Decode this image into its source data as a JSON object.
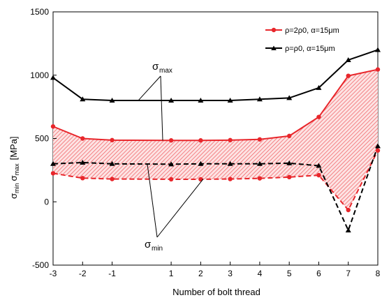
{
  "chart_data": {
    "type": "line",
    "title": "",
    "xlabel": "Number of bolt thread",
    "ylabel": "σmin σmax [MPa]",
    "ylabel_parts": {
      "sigma1": "σ",
      "sub1": "min",
      "sigma2": "σ",
      "sub2": "max",
      "unit": "[MPa]"
    },
    "xlim": [
      -3,
      8
    ],
    "ylim": [
      -500,
      1500
    ],
    "x_ticks": [
      -3,
      -2,
      -1,
      1,
      2,
      3,
      4,
      5,
      6,
      7,
      8
    ],
    "y_ticks": [
      -500,
      0,
      500,
      1000,
      1500
    ],
    "x": [
      -3,
      -2,
      -1,
      1,
      2,
      3,
      4,
      5,
      6,
      7,
      8
    ],
    "grid": false,
    "legend_position": "top-right",
    "series": [
      {
        "name": "ρ=2ρ0, α=15μm",
        "stat": "max",
        "color": "#e8262b",
        "marker": "circle",
        "dash": "solid",
        "values": [
          595,
          500,
          487,
          485,
          485,
          487,
          493,
          520,
          670,
          995,
          1045
        ]
      },
      {
        "name": "ρ=2ρ0, α=15μm",
        "stat": "min",
        "color": "#e8262b",
        "marker": "circle",
        "dash": "dashed",
        "values": [
          225,
          187,
          180,
          178,
          178,
          180,
          185,
          195,
          210,
          -65,
          405
        ]
      },
      {
        "name": "ρ=ρ0, α=15μm",
        "stat": "max",
        "color": "#000000",
        "marker": "triangle",
        "dash": "solid",
        "values": [
          980,
          810,
          800,
          800,
          800,
          800,
          810,
          820,
          900,
          1120,
          1200
        ]
      },
      {
        "name": "ρ=ρ0, α=15μm",
        "stat": "min",
        "color": "#000000",
        "marker": "triangle",
        "dash": "dashed",
        "values": [
          300,
          310,
          300,
          297,
          300,
          300,
          300,
          305,
          285,
          -225,
          440
        ]
      }
    ],
    "shaded_band": {
      "between": [
        "max",
        "min"
      ],
      "series_name": "ρ=2ρ0, α=15μm",
      "color": "#e8262b",
      "pattern": "hatched"
    },
    "annotations": [
      {
        "sigma": "σ",
        "sub": "max",
        "points_to": "σmax curves"
      },
      {
        "sigma": "σ",
        "sub": "min",
        "points_to": "σmin curves"
      }
    ]
  }
}
